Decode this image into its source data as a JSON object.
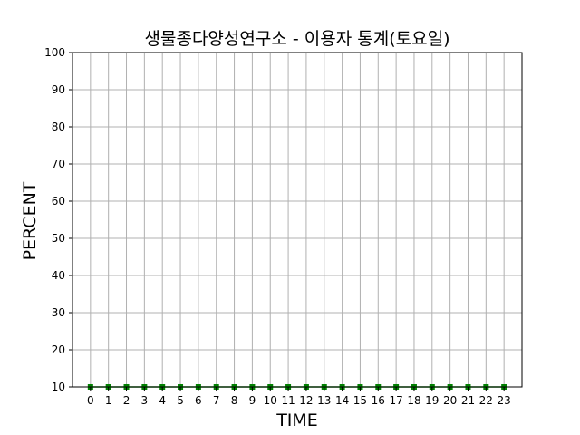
{
  "chart_data": {
    "type": "line",
    "title": "생물종다양성연구소 - 이용자 통계(토요일)",
    "xlabel": "TIME",
    "ylabel": "PERCENT",
    "x": [
      0,
      1,
      2,
      3,
      4,
      5,
      6,
      7,
      8,
      9,
      10,
      11,
      12,
      13,
      14,
      15,
      16,
      17,
      18,
      19,
      20,
      21,
      22,
      23
    ],
    "xtick_labels": [
      "0",
      "1",
      "2",
      "3",
      "4",
      "5",
      "6",
      "7",
      "8",
      "9",
      "10",
      "11",
      "12",
      "13",
      "14",
      "15",
      "16",
      "17",
      "18",
      "19",
      "20",
      "21",
      "22",
      "23"
    ],
    "series": [
      {
        "values": [
          10,
          10,
          10,
          10,
          10,
          10,
          10,
          10,
          10,
          10,
          10,
          10,
          10,
          10,
          10,
          10,
          10,
          10,
          10,
          10,
          10,
          10,
          10,
          10
        ],
        "color": "#008000",
        "marker": "square"
      }
    ],
    "ylim": [
      10,
      100
    ],
    "yticks": [
      10,
      20,
      30,
      40,
      50,
      60,
      70,
      80,
      90,
      100
    ],
    "ytick_labels": [
      "10",
      "20",
      "30",
      "40",
      "50",
      "60",
      "70",
      "80",
      "90",
      "100"
    ],
    "grid": true
  }
}
